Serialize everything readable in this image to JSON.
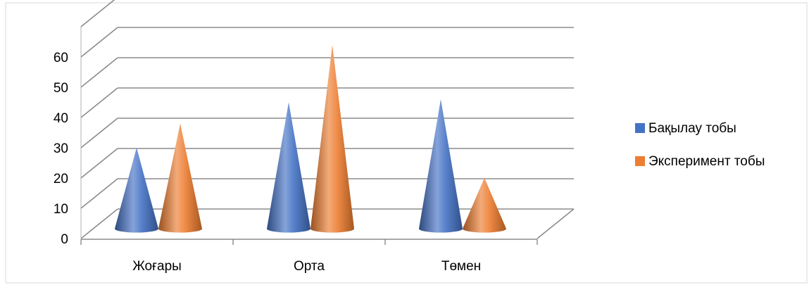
{
  "chart_data": {
    "type": "bar",
    "shape": "cone-3d",
    "categories": [
      "Жоғары",
      "Орта",
      "Төмен"
    ],
    "series": [
      {
        "name": "Бақылау тобы",
        "values": [
          24,
          39,
          40
        ],
        "color": "#4472C4"
      },
      {
        "name": "Эксперимент тобы",
        "values": [
          32,
          58,
          14
        ],
        "color": "#ED7D31"
      }
    ],
    "y_ticks": [
      "0",
      "10",
      "20",
      "30",
      "40",
      "50",
      "60"
    ],
    "ylim": [
      0,
      60
    ],
    "grid": true,
    "legend_position": "right"
  }
}
